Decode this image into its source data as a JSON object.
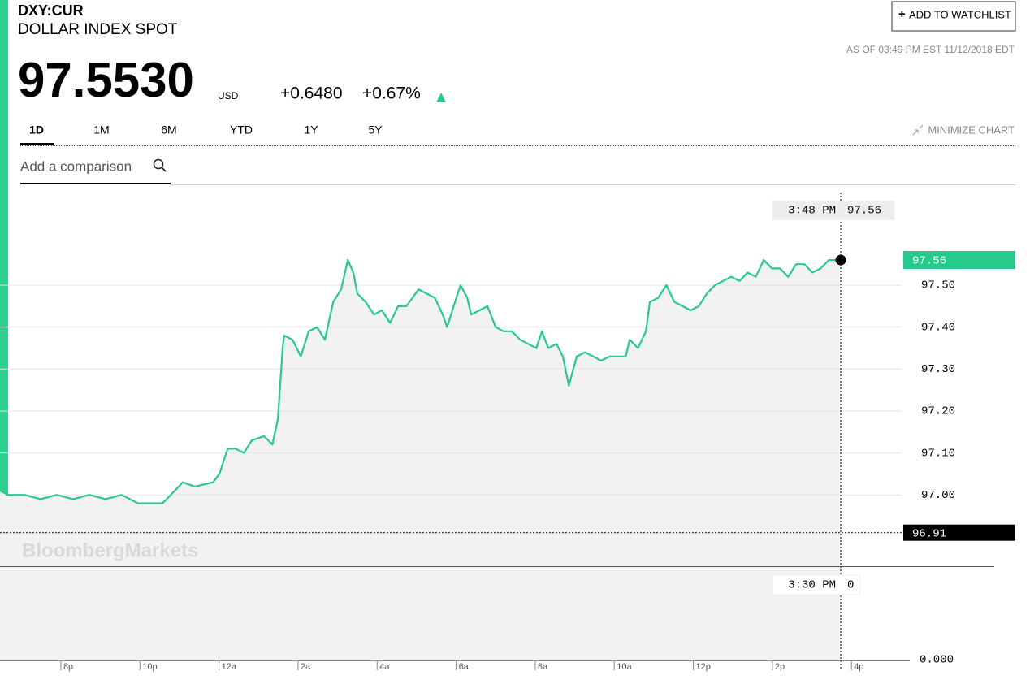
{
  "header": {
    "ticker": "DXY:CUR",
    "name": "DOLLAR INDEX SPOT",
    "price": "97.5530",
    "currency": "USD",
    "change": "+0.6480",
    "change_pct": "+0.67%",
    "as_of": "AS OF 03:49 PM EST 11/12/2018 EDT",
    "watchlist_button": "ADD TO WATCHLIST"
  },
  "tabs": [
    "1D",
    "1M",
    "6M",
    "YTD",
    "1Y",
    "5Y"
  ],
  "minimize": "MINIMIZE CHART",
  "search_placeholder": "Add a comparison",
  "chart_data": {
    "type": "line",
    "watermark": "BloombergMarkets",
    "x": [
      18.46,
      18.67,
      19.08,
      19.49,
      19.9,
      20.31,
      20.72,
      21.13,
      21.54,
      21.95,
      22.37,
      22.57,
      22.78,
      23.08,
      23.39,
      23.85,
      24.01,
      24.22,
      24.42,
      24.63,
      24.83,
      25.14,
      25.35,
      25.49,
      25.61,
      25.65,
      25.86,
      26.07,
      26.27,
      26.48,
      26.68,
      26.89,
      27.09,
      27.26,
      27.4,
      27.5,
      27.71,
      27.92,
      28.12,
      28.33,
      28.53,
      28.74,
      29.05,
      29.25,
      29.46,
      29.66,
      29.77,
      29.97,
      30.11,
      30.28,
      30.38,
      30.59,
      30.79,
      31.0,
      31.2,
      31.41,
      31.62,
      31.82,
      32.03,
      32.17,
      32.33,
      32.54,
      32.7,
      32.85,
      33.05,
      33.26,
      33.47,
      33.67,
      33.88,
      34.08,
      34.29,
      34.39,
      34.6,
      34.8,
      34.9,
      35.11,
      35.32,
      35.52,
      35.73,
      35.93,
      36.14,
      36.34,
      36.55,
      36.75,
      36.96,
      37.17,
      37.37,
      37.58,
      37.78,
      37.99,
      38.19,
      38.4,
      38.6,
      38.81,
      39.01,
      39.22,
      39.43,
      39.63,
      39.73
    ],
    "series": [
      {
        "color": "#27c98d",
        "values": [
          97.01,
          97.0,
          97.0,
          96.99,
          97.0,
          96.99,
          97.0,
          96.99,
          97.0,
          96.98,
          96.98,
          96.98,
          97.0,
          97.03,
          97.02,
          97.03,
          97.05,
          97.11,
          97.11,
          97.1,
          97.13,
          97.14,
          97.12,
          97.18,
          97.35,
          97.38,
          97.37,
          97.33,
          97.39,
          97.4,
          97.37,
          97.46,
          97.49,
          97.56,
          97.53,
          97.48,
          97.46,
          97.43,
          97.44,
          97.41,
          97.45,
          97.45,
          97.49,
          97.48,
          97.47,
          97.43,
          97.4,
          97.46,
          97.5,
          97.47,
          97.43,
          97.44,
          97.45,
          97.4,
          97.39,
          97.39,
          97.37,
          97.36,
          97.35,
          97.39,
          97.35,
          97.36,
          97.33,
          97.26,
          97.33,
          97.34,
          97.33,
          97.32,
          97.33,
          97.33,
          97.33,
          97.37,
          97.35,
          97.39,
          97.46,
          97.47,
          97.5,
          97.46,
          97.45,
          97.44,
          97.45,
          97.48,
          97.5,
          97.51,
          97.52,
          97.51,
          97.53,
          97.52,
          97.56,
          97.54,
          97.54,
          97.52,
          97.55,
          97.55,
          97.53,
          97.54,
          97.56,
          97.56,
          97.56
        ]
      }
    ],
    "xlim": [
      18.46,
      41.27
    ],
    "xticks": [
      {
        "value": 20,
        "label": "8p"
      },
      {
        "value": 22,
        "label": "10p"
      },
      {
        "value": 24,
        "label": "12a"
      },
      {
        "value": 26,
        "label": "2a"
      },
      {
        "value": 28,
        "label": "4a"
      },
      {
        "value": 30,
        "label": "6a"
      },
      {
        "value": 32,
        "label": "8a"
      },
      {
        "value": 34,
        "label": "10a"
      },
      {
        "value": 36,
        "label": "12p"
      },
      {
        "value": 38,
        "label": "2p"
      },
      {
        "value": 40,
        "label": "4p"
      }
    ],
    "ylim": [
      96.83,
      97.715
    ],
    "yticks": [
      {
        "value": 97,
        "label": "97.00"
      },
      {
        "value": 97.1,
        "label": "97.10"
      },
      {
        "value": 97.2,
        "label": "97.20"
      },
      {
        "value": 97.3,
        "label": "97.30"
      },
      {
        "value": 97.4,
        "label": "97.40"
      },
      {
        "value": 97.5,
        "label": "97.50"
      }
    ],
    "grid": true,
    "last_price": 97.56,
    "previous_close": 96.91,
    "crosshair": {
      "time": "3:48 PM",
      "value": 97.56
    },
    "volume_panel": {
      "time": "3:30 PM",
      "value": 0,
      "yticks": [
        {
          "value": 0,
          "label": "0.000"
        }
      ]
    }
  }
}
